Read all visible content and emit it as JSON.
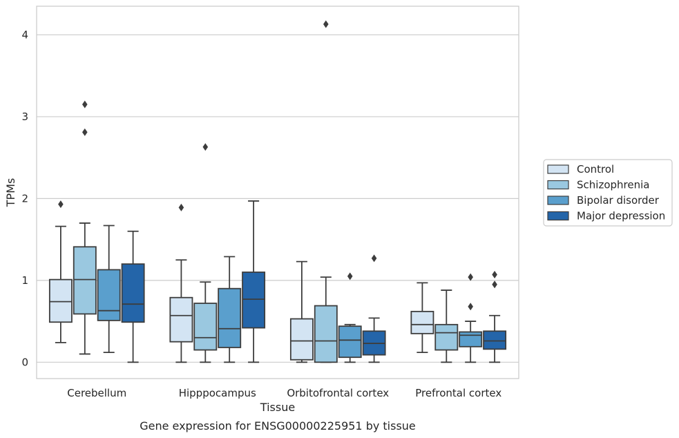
{
  "caption": "Gene expression for ENSG00000225951 by tissue",
  "chart_data": {
    "type": "box",
    "xlabel": "Tissue",
    "ylabel": "TPMs",
    "ylim": [
      -0.2,
      4.35
    ],
    "yticks": [
      0,
      1,
      2,
      3,
      4
    ],
    "grid": "horizontal",
    "legend_position": "right",
    "categories": [
      "Cerebellum",
      "Hipppocampus",
      "Orbitofrontal cortex",
      "Prefrontal cortex"
    ],
    "series": [
      {
        "name": "Control",
        "color": "#d3e4f3",
        "boxes": [
          {
            "whislo": 0.24,
            "q1": 0.49,
            "med": 0.74,
            "q3": 1.01,
            "whishi": 1.66,
            "fliers": [
              1.93
            ]
          },
          {
            "whislo": 0.0,
            "q1": 0.25,
            "med": 0.57,
            "q3": 0.79,
            "whishi": 1.25,
            "fliers": [
              1.89
            ]
          },
          {
            "whislo": 0.0,
            "q1": 0.03,
            "med": 0.26,
            "q3": 0.53,
            "whishi": 1.23,
            "fliers": []
          },
          {
            "whislo": 0.12,
            "q1": 0.35,
            "med": 0.46,
            "q3": 0.62,
            "whishi": 0.97,
            "fliers": []
          }
        ]
      },
      {
        "name": "Schizophrenia",
        "color": "#9ac8e0",
        "boxes": [
          {
            "whislo": 0.1,
            "q1": 0.59,
            "med": 1.01,
            "q3": 1.41,
            "whishi": 1.7,
            "fliers": [
              2.81,
              3.15
            ]
          },
          {
            "whislo": 0.0,
            "q1": 0.15,
            "med": 0.3,
            "q3": 0.72,
            "whishi": 0.98,
            "fliers": [
              2.63
            ]
          },
          {
            "whislo": 0.0,
            "q1": 0.0,
            "med": 0.26,
            "q3": 0.69,
            "whishi": 1.04,
            "fliers": [
              4.13
            ]
          },
          {
            "whislo": 0.0,
            "q1": 0.15,
            "med": 0.36,
            "q3": 0.46,
            "whishi": 0.88,
            "fliers": []
          }
        ]
      },
      {
        "name": "Bipolar disorder",
        "color": "#5a9fcd",
        "boxes": [
          {
            "whislo": 0.12,
            "q1": 0.51,
            "med": 0.63,
            "q3": 1.13,
            "whishi": 1.67,
            "fliers": []
          },
          {
            "whislo": 0.0,
            "q1": 0.18,
            "med": 0.41,
            "q3": 0.9,
            "whishi": 1.29,
            "fliers": []
          },
          {
            "whislo": 0.0,
            "q1": 0.06,
            "med": 0.27,
            "q3": 0.44,
            "whishi": 0.46,
            "fliers": [
              1.05
            ]
          },
          {
            "whislo": 0.0,
            "q1": 0.19,
            "med": 0.33,
            "q3": 0.37,
            "whishi": 0.5,
            "fliers": [
              0.68,
              1.04
            ]
          }
        ]
      },
      {
        "name": "Major depression",
        "color": "#2465a9",
        "boxes": [
          {
            "whislo": 0.0,
            "q1": 0.49,
            "med": 0.71,
            "q3": 1.2,
            "whishi": 1.6,
            "fliers": []
          },
          {
            "whislo": 0.0,
            "q1": 0.42,
            "med": 0.77,
            "q3": 1.1,
            "whishi": 1.97,
            "fliers": []
          },
          {
            "whislo": 0.0,
            "q1": 0.09,
            "med": 0.23,
            "q3": 0.38,
            "whishi": 0.54,
            "fliers": [
              1.27
            ]
          },
          {
            "whislo": 0.0,
            "q1": 0.16,
            "med": 0.26,
            "q3": 0.38,
            "whishi": 0.57,
            "fliers": [
              0.95,
              1.07
            ]
          }
        ]
      }
    ]
  }
}
